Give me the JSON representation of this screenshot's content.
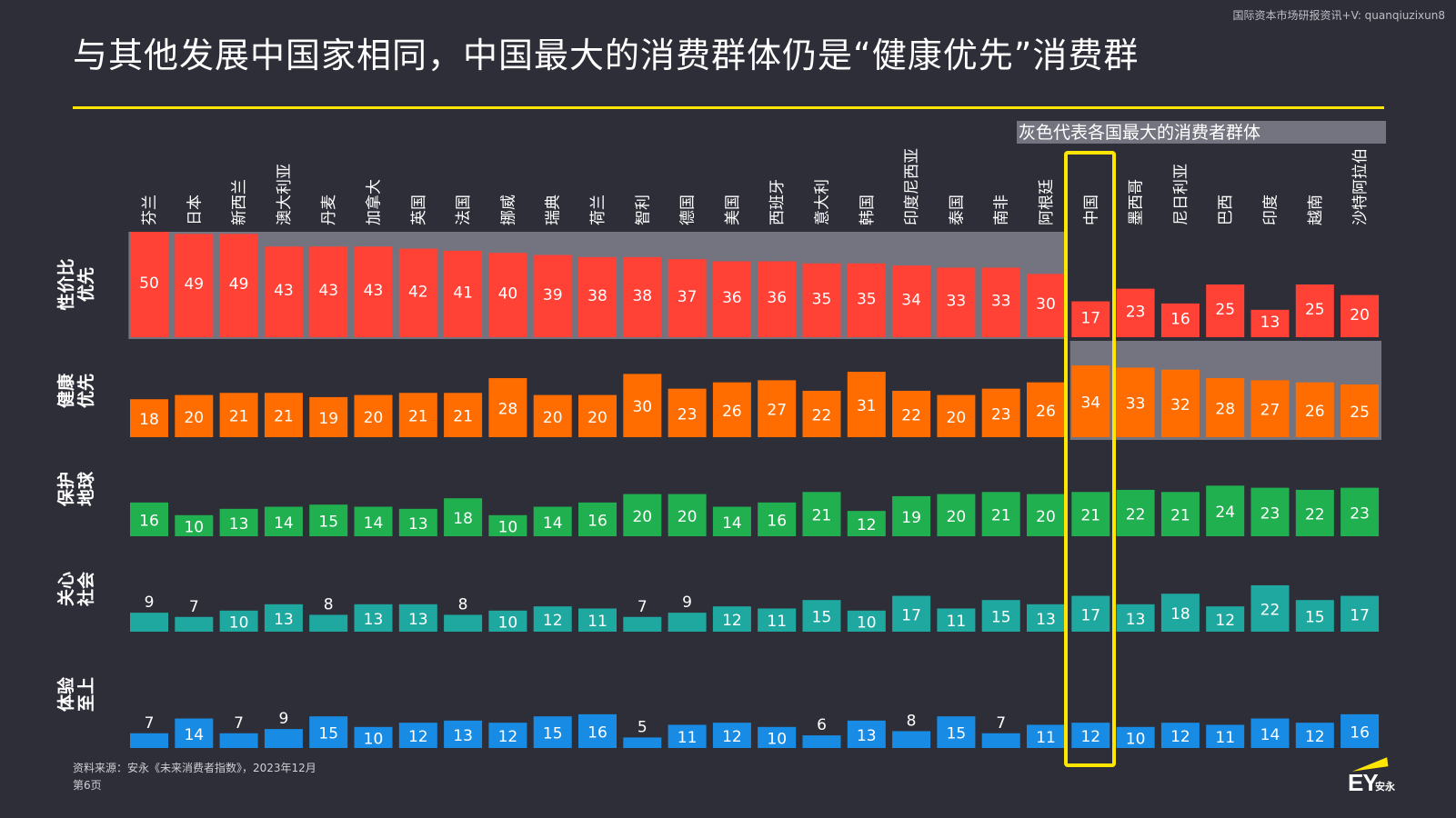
{
  "header": {
    "watermark": "国际资本市场研报资讯+V: quanqiuzixun8",
    "title": "与其他发展中国家相同，中国最大的消费群体仍是“健康优先”消费群"
  },
  "legend_note": "灰色代表各国最大的消费者群体",
  "footer": {
    "source": "资料来源：安永《未来消费者指数》，2023年12月",
    "page": "第6页"
  },
  "logo": {
    "text": "EY",
    "cn": "安永"
  },
  "colors": {
    "background": "#2e2e38",
    "highlight_band": "#747480",
    "accent_yellow": "#ffe600",
    "series": [
      "#ff4136",
      "#ff6d00",
      "#21b04f",
      "#1fa8a0",
      "#188ce5"
    ]
  },
  "chart_data": {
    "type": "bar",
    "categories": [
      "芬兰",
      "日本",
      "新西兰",
      "澳大利亚",
      "丹麦",
      "加拿大",
      "英国",
      "法国",
      "挪威",
      "瑞典",
      "荷兰",
      "智利",
      "德国",
      "美国",
      "西班牙",
      "意大利",
      "韩国",
      "印度尼西亚",
      "泰国",
      "南非",
      "阿根廷",
      "中国",
      "墨西哥",
      "尼日利亚",
      "巴西",
      "印度",
      "越南",
      "沙特阿拉伯"
    ],
    "series": [
      {
        "name": "性价比优先",
        "label_lines": [
          "性价比",
          "优先"
        ],
        "values": [
          50,
          49,
          49,
          43,
          43,
          43,
          42,
          41,
          40,
          39,
          38,
          38,
          37,
          36,
          36,
          35,
          35,
          34,
          33,
          33,
          30,
          17,
          23,
          16,
          25,
          13,
          25,
          20
        ]
      },
      {
        "name": "健康优先",
        "label_lines": [
          "健康",
          "优先"
        ],
        "values": [
          18,
          20,
          21,
          21,
          19,
          20,
          21,
          21,
          28,
          20,
          20,
          30,
          23,
          26,
          27,
          22,
          31,
          22,
          20,
          23,
          26,
          34,
          33,
          32,
          28,
          27,
          26,
          25
        ]
      },
      {
        "name": "保护地球",
        "label_lines": [
          "保护",
          "地球"
        ],
        "values": [
          16,
          10,
          13,
          14,
          15,
          14,
          13,
          18,
          10,
          14,
          16,
          20,
          20,
          14,
          16,
          21,
          12,
          19,
          20,
          21,
          20,
          21,
          22,
          21,
          24,
          23,
          22,
          23
        ]
      },
      {
        "name": "关心社会",
        "label_lines": [
          "关心",
          "社会"
        ],
        "values": [
          9,
          7,
          10,
          13,
          8,
          13,
          13,
          8,
          10,
          12,
          11,
          7,
          9,
          12,
          11,
          15,
          10,
          17,
          11,
          15,
          13,
          17,
          13,
          18,
          12,
          22,
          15,
          17
        ]
      },
      {
        "name": "体验至上",
        "label_lines": [
          "体验",
          "至上"
        ],
        "values": [
          7,
          14,
          7,
          9,
          15,
          10,
          12,
          13,
          12,
          15,
          16,
          5,
          11,
          12,
          10,
          6,
          13,
          8,
          15,
          7,
          11,
          12,
          10,
          12,
          11,
          14,
          12,
          16
        ]
      }
    ],
    "largest_group": {
      "性价比优先": [
        0,
        20
      ],
      "健康优先": [
        21,
        27
      ]
    },
    "highlighted_category": "中国"
  }
}
